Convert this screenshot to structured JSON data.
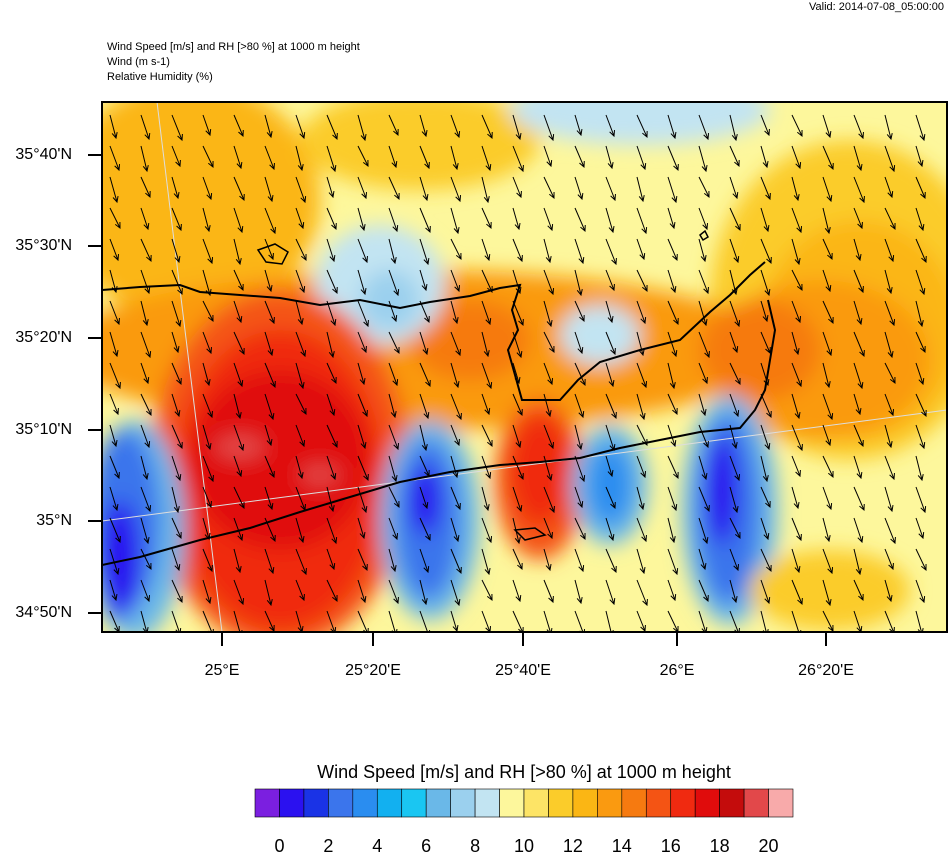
{
  "header": {
    "valid": "Valid: 2014-07-08_05:00:00",
    "lines": [
      "Wind Speed [m/s] and RH [>80 %] at 1000 m height",
      "Wind   (m s-1)",
      "Relative Humidity   (%)"
    ]
  },
  "axes": {
    "lat_labels": [
      "35°40'N",
      "35°30'N",
      "35°20'N",
      "35°10'N",
      "35°N",
      "34°50'N"
    ],
    "lon_labels": [
      "25°E",
      "25°20'E",
      "25°40'E",
      "26°E",
      "26°20'E"
    ]
  },
  "colorbar": {
    "title": "Wind Speed [m/s] and RH [>80 %] at 1000 m height",
    "range": [
      -1,
      21
    ],
    "ticks": [
      0,
      2,
      4,
      6,
      8,
      10,
      12,
      14,
      16,
      18,
      20
    ],
    "colors": [
      "#7b1fe0",
      "#2b11f0",
      "#1a33e6",
      "#3b75ec",
      "#2a8df0",
      "#12b0f0",
      "#1ac6f2",
      "#6ab8e8",
      "#9bd0ee",
      "#c2e4f2",
      "#fdf79c",
      "#fde466",
      "#fbcc2a",
      "#fbb614",
      "#fa9a10",
      "#f67a10",
      "#f45414",
      "#f02a10",
      "#e00c0c",
      "#c40c0c",
      "#e2484a",
      "#f8aaaa"
    ]
  }
}
